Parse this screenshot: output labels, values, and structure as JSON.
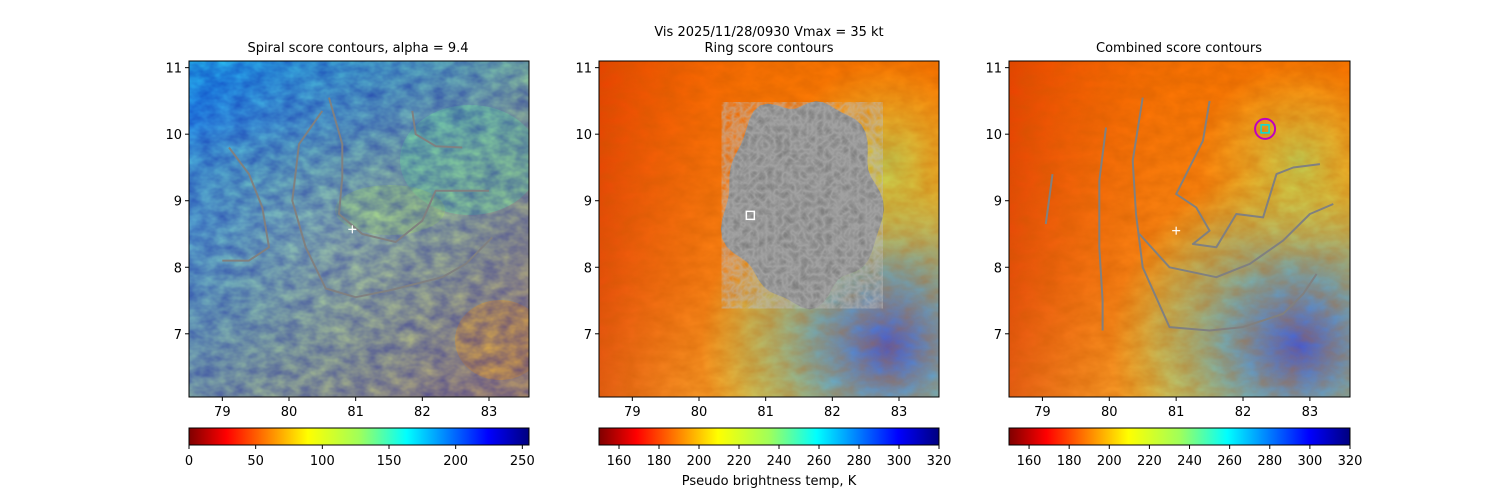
{
  "figure": {
    "suptitle_line1": "Vis  2025/11/28/0930    Vmax = 35 kt",
    "xlabel_shared": "Pseudo brightness temp, K"
  },
  "chart_data": [
    {
      "type": "heatmap",
      "title": "Spiral score contours, alpha =  9.4",
      "xlim": [
        78.5,
        83.6
      ],
      "ylim": [
        6.05,
        11.1
      ],
      "xticks": [
        "79",
        "80",
        "81",
        "82",
        "83"
      ],
      "yticks": [
        "7",
        "8",
        "9",
        "10",
        "11"
      ],
      "colormap": "jet",
      "colorbar": {
        "range": [
          0,
          255
        ],
        "ticks": [
          "0",
          "50",
          "100",
          "150",
          "200",
          "250"
        ],
        "reversed": true
      },
      "center_marker": {
        "x": 80.95,
        "y": 8.57,
        "symbol": "+"
      },
      "contour_color": "#808080",
      "contours": [
        [
          [
            79.0,
            8.1
          ],
          [
            79.4,
            8.1
          ],
          [
            79.7,
            8.3
          ],
          [
            79.6,
            8.9
          ],
          [
            79.4,
            9.4
          ],
          [
            79.1,
            9.8
          ]
        ],
        [
          [
            80.5,
            10.35
          ],
          [
            80.15,
            9.85
          ],
          [
            80.05,
            9.0
          ],
          [
            80.25,
            8.3
          ],
          [
            80.55,
            7.68
          ],
          [
            81.0,
            7.55
          ],
          [
            81.5,
            7.65
          ],
          [
            81.9,
            7.75
          ],
          [
            82.3,
            7.85
          ],
          [
            82.65,
            8.05
          ],
          [
            83.05,
            8.45
          ]
        ],
        [
          [
            80.6,
            10.55
          ],
          [
            80.8,
            9.85
          ],
          [
            80.8,
            9.35
          ],
          [
            80.75,
            8.8
          ],
          [
            81.1,
            8.5
          ],
          [
            81.6,
            8.38
          ],
          [
            82.0,
            8.7
          ],
          [
            82.2,
            9.15
          ],
          [
            82.55,
            9.15
          ],
          [
            83.0,
            9.15
          ]
        ],
        [
          [
            81.85,
            10.35
          ],
          [
            81.9,
            10.0
          ],
          [
            82.2,
            9.82
          ],
          [
            82.6,
            9.8
          ]
        ]
      ]
    },
    {
      "type": "heatmap",
      "title": "Ring score contours",
      "xlim": [
        78.5,
        83.6
      ],
      "ylim": [
        6.05,
        11.1
      ],
      "xticks": [
        "79",
        "80",
        "81",
        "82",
        "83"
      ],
      "yticks": [
        "7",
        "8",
        "9",
        "10",
        "11"
      ],
      "colormap": "jet",
      "colorbar": {
        "range": [
          150,
          320
        ],
        "ticks": [
          "160",
          "180",
          "200",
          "220",
          "240",
          "260",
          "280",
          "300",
          "320"
        ],
        "reversed": true
      },
      "center_marker": {
        "x": 80.77,
        "y": 8.78,
        "symbol": "square"
      },
      "ring_region": {
        "center_x": 81.55,
        "center_y": 9.0,
        "radius_x": 1.15,
        "radius_y": 1.5
      },
      "contour_color": "#808080"
    },
    {
      "type": "heatmap",
      "title": "Combined score contours",
      "xlim": [
        78.5,
        83.6
      ],
      "ylim": [
        6.05,
        11.1
      ],
      "xticks": [
        "79",
        "80",
        "81",
        "82",
        "83"
      ],
      "yticks": [
        "7",
        "8",
        "9",
        "10",
        "11"
      ],
      "colormap": "jet",
      "colorbar": {
        "range": [
          150,
          320
        ],
        "ticks": [
          "160",
          "180",
          "200",
          "220",
          "240",
          "260",
          "280",
          "300",
          "320"
        ],
        "reversed": true
      },
      "center_marker": {
        "x": 81.0,
        "y": 8.55,
        "symbol": "+"
      },
      "best_center": {
        "x": 82.33,
        "y": 10.08,
        "symbol": "square",
        "circle_color": "#c000c0",
        "square_color": "#00e0e0"
      },
      "contour_color": "#808080",
      "contours": [
        [
          [
            79.05,
            8.65
          ],
          [
            79.15,
            9.4
          ]
        ],
        [
          [
            79.95,
            10.1
          ],
          [
            79.85,
            9.3
          ],
          [
            79.85,
            8.3
          ],
          [
            79.9,
            7.5
          ],
          [
            79.9,
            7.05
          ]
        ],
        [
          [
            80.5,
            10.55
          ],
          [
            80.35,
            9.6
          ],
          [
            80.4,
            8.8
          ],
          [
            80.5,
            8.0
          ],
          [
            80.9,
            7.1
          ],
          [
            81.5,
            7.05
          ],
          [
            82.0,
            7.1
          ],
          [
            82.6,
            7.3
          ],
          [
            82.9,
            7.6
          ],
          [
            83.1,
            7.9
          ]
        ],
        [
          [
            81.5,
            10.5
          ],
          [
            81.4,
            9.9
          ],
          [
            81.0,
            9.1
          ],
          [
            81.3,
            8.9
          ],
          [
            81.5,
            8.55
          ],
          [
            81.25,
            8.35
          ],
          [
            81.6,
            8.3
          ],
          [
            81.9,
            8.8
          ],
          [
            82.3,
            8.75
          ],
          [
            82.5,
            9.4
          ],
          [
            82.75,
            9.5
          ],
          [
            83.15,
            9.55
          ]
        ],
        [
          [
            80.45,
            8.5
          ],
          [
            80.9,
            8.0
          ],
          [
            81.6,
            7.85
          ],
          [
            82.1,
            8.05
          ],
          [
            82.6,
            8.4
          ],
          [
            83.0,
            8.8
          ],
          [
            83.35,
            8.95
          ]
        ]
      ]
    }
  ]
}
